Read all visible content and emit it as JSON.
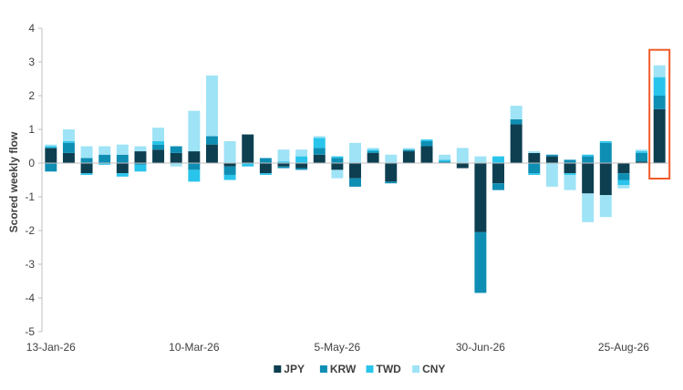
{
  "chart_data": {
    "type": "bar",
    "stacked": true,
    "ylabel": "Scored weekly flow",
    "xlabel": "",
    "ylim": [
      -5,
      4
    ],
    "yticks": [
      -5,
      -4,
      -3,
      -2,
      -1,
      0,
      1,
      2,
      3,
      4
    ],
    "x_tick_labels": [
      "13-Jan-26",
      "10-Mar-26",
      "5-May-26",
      "30-Jun-26",
      "25-Aug-26"
    ],
    "x_tick_indices": [
      0,
      8,
      16,
      24,
      32
    ],
    "legend_position": "bottom",
    "highlight": {
      "category_index": 34,
      "color": "#F05A28"
    },
    "categories": [
      "13-Jan-26",
      "20-Jan-26",
      "27-Jan-26",
      "3-Feb-26",
      "10-Feb-26",
      "17-Feb-26",
      "24-Feb-26",
      "3-Mar-26",
      "10-Mar-26",
      "17-Mar-26",
      "24-Mar-26",
      "31-Mar-26",
      "7-Apr-26",
      "14-Apr-26",
      "21-Apr-26",
      "28-Apr-26",
      "5-May-26",
      "12-May-26",
      "19-May-26",
      "26-May-26",
      "2-Jun-26",
      "9-Jun-26",
      "16-Jun-26",
      "23-Jun-26",
      "30-Jun-26",
      "7-Jul-26",
      "14-Jul-26",
      "21-Jul-26",
      "28-Jul-26",
      "4-Aug-26",
      "11-Aug-26",
      "18-Aug-26",
      "25-Aug-26",
      "1-Sep-26",
      "8-Sep-26"
    ],
    "series": [
      {
        "name": "JPY",
        "color": "#0D3F50",
        "values": [
          0.45,
          0.3,
          -0.3,
          0.0,
          -0.3,
          0.35,
          0.4,
          0.3,
          0.35,
          0.55,
          -0.1,
          0.85,
          -0.3,
          -0.1,
          -0.15,
          0.25,
          -0.2,
          -0.45,
          0.3,
          -0.55,
          0.35,
          0.5,
          0.0,
          -0.15,
          -2.05,
          -0.6,
          1.15,
          0.3,
          0.2,
          -0.3,
          -0.9,
          -0.95,
          -0.3,
          0.05,
          1.6
        ]
      },
      {
        "name": "KRW",
        "color": "#0F8EB4",
        "values": [
          -0.25,
          0.3,
          0.15,
          0.25,
          0.25,
          -0.05,
          0.15,
          0.2,
          -0.2,
          0.25,
          -0.25,
          0.0,
          0.15,
          -0.05,
          -0.05,
          0.2,
          0.15,
          -0.25,
          0.05,
          -0.05,
          0.05,
          0.15,
          0.05,
          0.0,
          -1.8,
          -0.2,
          0.15,
          -0.3,
          0.05,
          0.1,
          0.2,
          0.6,
          -0.2,
          0.25,
          0.4
        ]
      },
      {
        "name": "TWD",
        "color": "#29C4EB",
        "values": [
          0.05,
          0.05,
          -0.05,
          -0.05,
          -0.1,
          -0.2,
          0.1,
          0.0,
          -0.35,
          0.0,
          -0.15,
          -0.1,
          -0.05,
          0.05,
          0.2,
          0.3,
          0.05,
          0.0,
          0.05,
          0.0,
          0.0,
          0.05,
          0.05,
          0.0,
          0.0,
          0.2,
          0.0,
          -0.05,
          0.0,
          -0.05,
          0.05,
          0.05,
          -0.15,
          0.05,
          0.55
        ]
      },
      {
        "name": "CNY",
        "color": "#9EE3F6",
        "values": [
          0.05,
          0.35,
          0.35,
          0.25,
          0.3,
          0.15,
          0.4,
          -0.1,
          1.2,
          1.8,
          0.65,
          0.0,
          0.0,
          0.35,
          0.2,
          0.05,
          -0.25,
          0.6,
          0.05,
          0.25,
          0.05,
          0.0,
          0.15,
          0.45,
          0.2,
          0.0,
          0.4,
          0.05,
          -0.7,
          -0.45,
          -0.85,
          -0.65,
          -0.1,
          0.05,
          0.35
        ]
      }
    ]
  }
}
